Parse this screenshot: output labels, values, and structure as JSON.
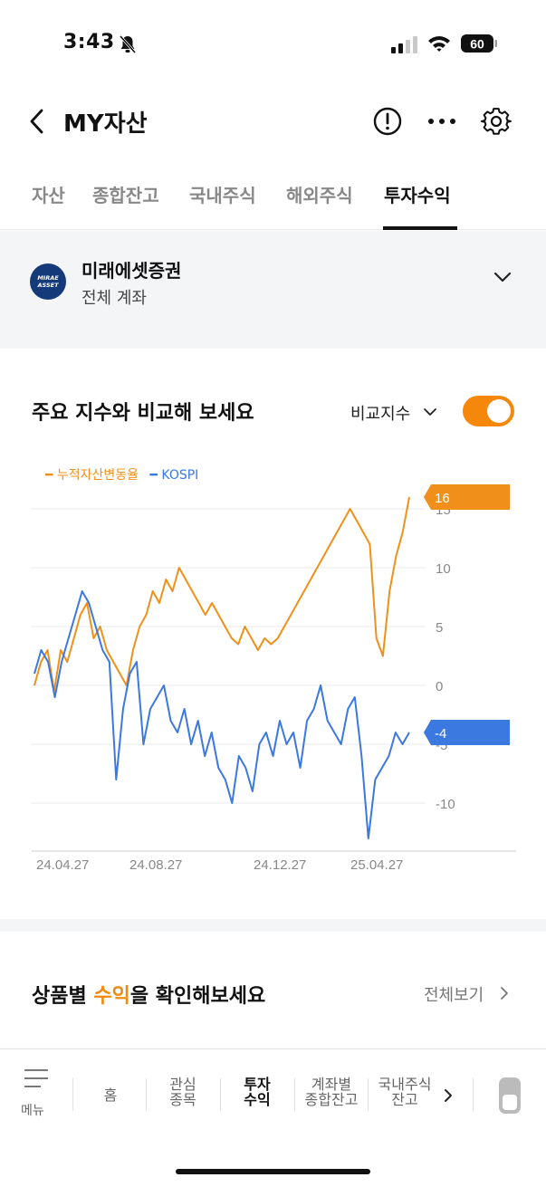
{
  "status_bar": {
    "time": "3:43",
    "battery": "60"
  },
  "header": {
    "title": "MY자산"
  },
  "tabs": [
    {
      "label": "자산"
    },
    {
      "label": "종합잔고"
    },
    {
      "label": "국내주식"
    },
    {
      "label": "해외주식"
    },
    {
      "label": "투자수익"
    }
  ],
  "account": {
    "logo_line1": "MIRAE",
    "logo_line2": "ASSET",
    "name": "미래에셋증권",
    "sub": "전체 계좌"
  },
  "chart_section": {
    "title": "주요 지수와 비교해 보세요",
    "compare_label": "비교지수",
    "toggle_on": true
  },
  "chart_data": {
    "type": "line",
    "x_ticks": [
      "24.04.27",
      "24.08.27",
      "24.12.27",
      "25.04.27"
    ],
    "y_ticks": [
      -10,
      -5,
      0,
      5,
      10,
      15
    ],
    "ylim": [
      -14,
      16
    ],
    "series": [
      {
        "name": "누적자산변동율",
        "color": "#f0901a",
        "end_label": "16",
        "values": [
          0,
          2,
          3,
          -0.5,
          3,
          2,
          4,
          6,
          7,
          4,
          5,
          3,
          2,
          1,
          0,
          3,
          5,
          6,
          8,
          7,
          9,
          8,
          10,
          9,
          8,
          7,
          6,
          7,
          6,
          5,
          4,
          3.5,
          5,
          4,
          3,
          4,
          3.5,
          4,
          5,
          6,
          7,
          8,
          9,
          10,
          11,
          12,
          13,
          14,
          15,
          14,
          13,
          12,
          4,
          2.5,
          8,
          11,
          13,
          16
        ]
      },
      {
        "name": "KOSPI",
        "color": "#3b78e0",
        "end_label": "-4",
        "values": [
          1,
          3,
          2,
          -1,
          2,
          4,
          6,
          8,
          7,
          5,
          3,
          2,
          -8,
          -2,
          1,
          2,
          -5,
          -2,
          -1,
          0,
          -3,
          -4,
          -2,
          -5,
          -3,
          -6,
          -4,
          -7,
          -8,
          -10,
          -6,
          -7,
          -9,
          -5,
          -4,
          -6,
          -3,
          -5,
          -4,
          -7,
          -3,
          -2,
          0,
          -3,
          -4,
          -5,
          -2,
          -1,
          -6,
          -13,
          -8,
          -7,
          -6,
          -4,
          -5,
          -4
        ]
      }
    ]
  },
  "product_section": {
    "title_pre": "상품별 ",
    "title_hl": "수익",
    "title_post": "을 확인해보세요",
    "see_all": "전체보기"
  },
  "bottom_nav": {
    "menu": "메뉴",
    "items": [
      {
        "line1": "홈",
        "line2": ""
      },
      {
        "line1": "관심",
        "line2": "종목"
      },
      {
        "line1": "투자",
        "line2": "수익"
      },
      {
        "line1": "계좌별",
        "line2": "종합잔고"
      },
      {
        "line1": "국내주식",
        "line2": "잔고"
      }
    ]
  }
}
